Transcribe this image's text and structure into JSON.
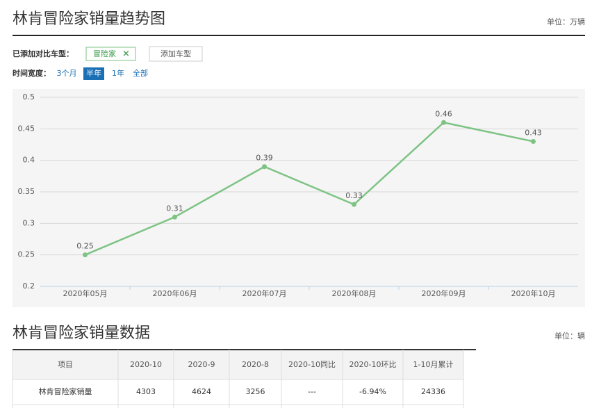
{
  "header": {
    "title": "林肯冒险家销量趋势图",
    "unit": "单位：万辆"
  },
  "compare": {
    "label": "已添加对比车型：",
    "tag": "冒险家",
    "add_button": "添加车型"
  },
  "time_range": {
    "label": "时间宽度：",
    "options": [
      "3个月",
      "半年",
      "1年",
      "全部"
    ],
    "selected_index": 1
  },
  "chart_data": {
    "type": "line",
    "categories": [
      "2020年05月",
      "2020年06月",
      "2020年07月",
      "2020年08月",
      "2020年09月",
      "2020年10月"
    ],
    "values": [
      0.25,
      0.31,
      0.39,
      0.33,
      0.46,
      0.43
    ],
    "color": "#7dc383",
    "ylim": [
      0.2,
      0.5
    ],
    "yticks": [
      0.2,
      0.25,
      0.3,
      0.35,
      0.4,
      0.45,
      0.5
    ],
    "grid": true
  },
  "table": {
    "title": "林肯冒险家销量数据",
    "unit": "单位：辆",
    "header": [
      "项目",
      "2020-10",
      "2020-9",
      "2020-8",
      "2020-10同比",
      "2020-10环比",
      "1-10月累计"
    ],
    "rows": [
      [
        "林肯冒险家销量",
        "4303",
        "4624",
        "3256",
        "---",
        "-6.94%",
        "24336"
      ]
    ]
  }
}
